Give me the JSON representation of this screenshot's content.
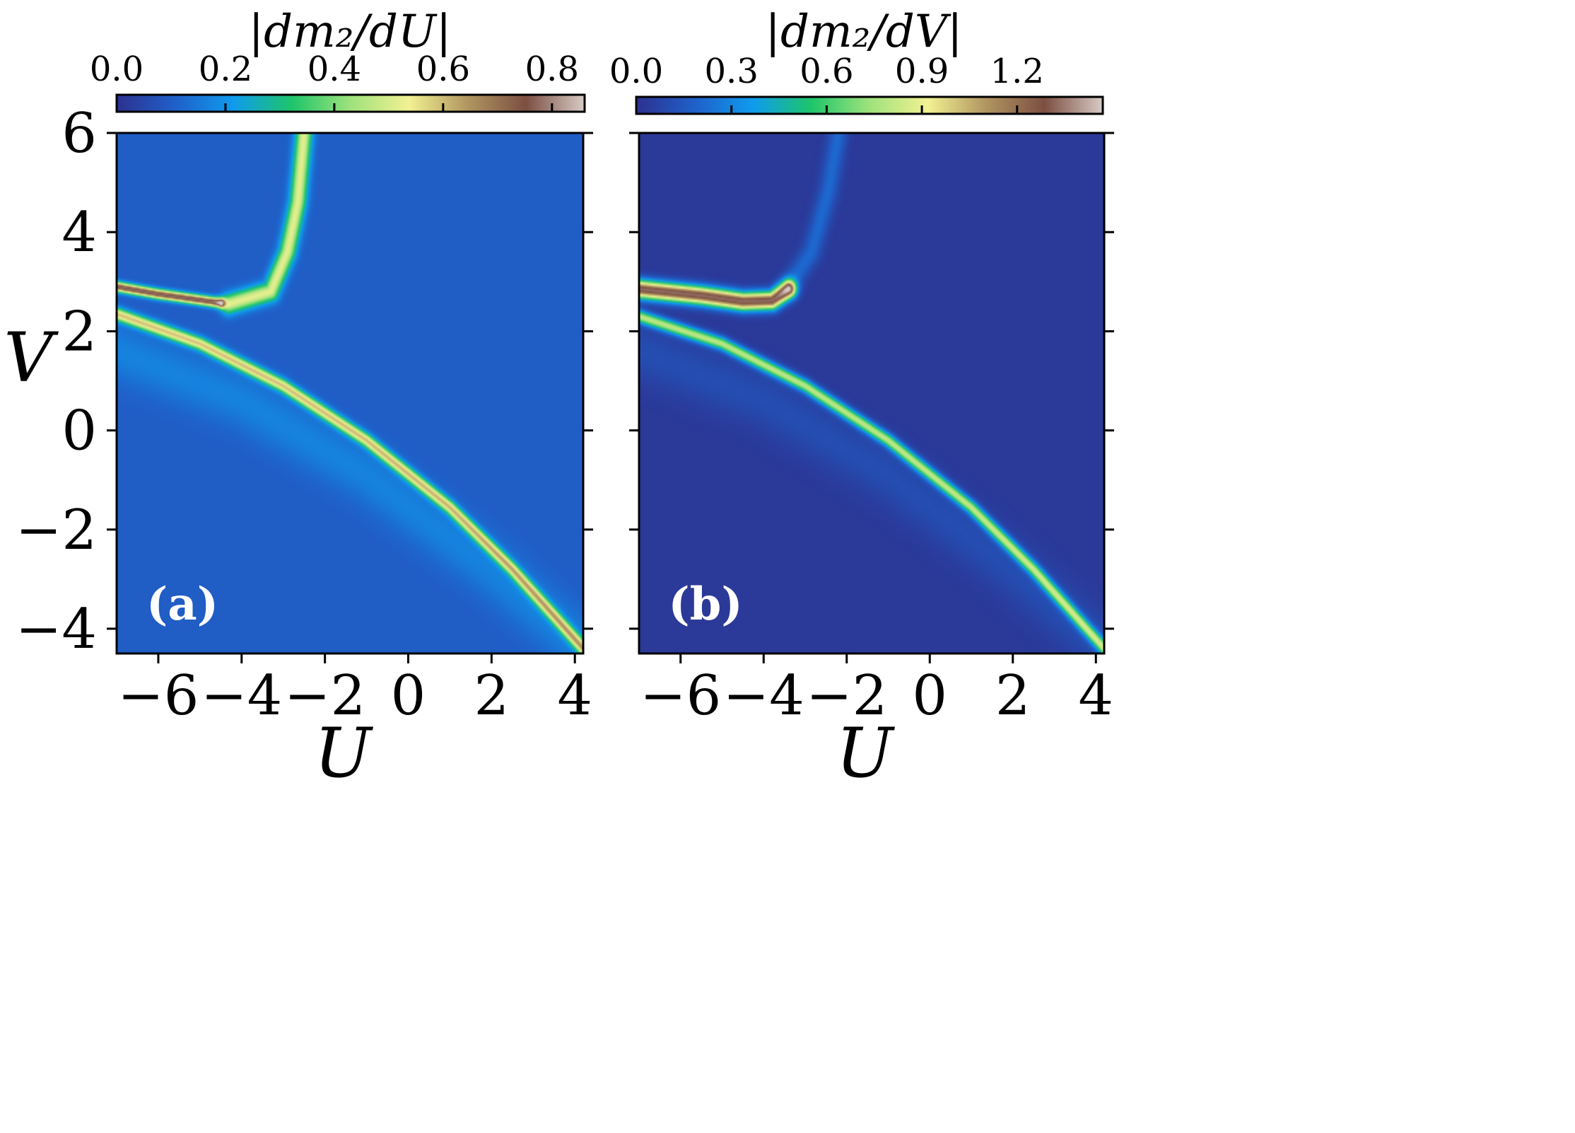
{
  "chart_data": [
    {
      "type": "heatmap",
      "panel_label": "(a)",
      "colorbar": {
        "title": "|dm₂/dU|",
        "ticks": [
          0.0,
          0.2,
          0.4,
          0.6,
          0.8
        ],
        "tick_labels": [
          "0.0",
          "0.2",
          "0.4",
          "0.6",
          "0.8"
        ],
        "range": [
          0.0,
          0.86
        ],
        "colormap": [
          "#2d318f",
          "#1f60c9",
          "#0f9bee",
          "#1ec56a",
          "#9fe27c",
          "#f2f192",
          "#b09560",
          "#7c4f42",
          "#d8cbc6"
        ]
      },
      "xlabel": "U",
      "ylabel": "V",
      "xlim": [
        -7.0,
        4.2
      ],
      "ylim": [
        -4.5,
        6.0
      ],
      "xticks": [
        -6,
        -4,
        -2,
        0,
        2,
        4
      ],
      "xtick_labels": [
        "−6",
        "−4",
        "−2",
        "0",
        "2",
        "4"
      ],
      "yticks": [
        -4,
        -2,
        0,
        2,
        4,
        6
      ],
      "ytick_labels": [
        "−4",
        "−2",
        "0",
        "2",
        "4",
        "6"
      ],
      "background_value": 0.1,
      "features": [
        {
          "name": "lower-transition-line",
          "peak": 0.48,
          "width": 0.09,
          "points": [
            [
              -7.0,
              2.35
            ],
            [
              -5.0,
              1.75
            ],
            [
              -3.0,
              0.9
            ],
            [
              -1.0,
              -0.2
            ],
            [
              1.0,
              -1.55
            ],
            [
              2.5,
              -2.8
            ],
            [
              4.2,
              -4.4
            ]
          ]
        },
        {
          "name": "upper-left-line",
          "peak": 0.68,
          "width": 0.07,
          "points": [
            [
              -7.0,
              2.9
            ],
            [
              -6.0,
              2.75
            ],
            [
              -5.0,
              2.63
            ],
            [
              -4.5,
              2.57
            ]
          ]
        },
        {
          "name": "vertical-arc",
          "peak": 0.42,
          "width": 0.14,
          "points": [
            [
              -4.3,
              2.55
            ],
            [
              -3.3,
              2.8
            ],
            [
              -2.9,
              3.6
            ],
            [
              -2.65,
              4.6
            ],
            [
              -2.5,
              6.0
            ]
          ]
        },
        {
          "name": "diffuse-lower-parabola",
          "peak": 0.07,
          "width": 0.4,
          "points": [
            [
              -7.0,
              1.6
            ],
            [
              -4.0,
              0.6
            ],
            [
              -1.0,
              -0.9
            ],
            [
              2.0,
              -2.8
            ],
            [
              4.2,
              -4.4
            ]
          ]
        }
      ]
    },
    {
      "type": "heatmap",
      "panel_label": "(b)",
      "colorbar": {
        "title": "|dm₂/dV|",
        "ticks": [
          0.0,
          0.3,
          0.6,
          0.9,
          1.2
        ],
        "tick_labels": [
          "0.0",
          "0.3",
          "0.6",
          "0.9",
          "1.2"
        ],
        "range": [
          0.0,
          1.47
        ],
        "colormap": [
          "#2d318f",
          "#1f60c9",
          "#0f9bee",
          "#1ec56a",
          "#9fe27c",
          "#f2f192",
          "#b09560",
          "#7c4f42",
          "#d8cbc6"
        ]
      },
      "xlabel": "U",
      "ylabel": "",
      "xlim": [
        -7.0,
        4.2
      ],
      "ylim": [
        -4.5,
        6.0
      ],
      "xticks": [
        -6,
        -4,
        -2,
        0,
        2,
        4
      ],
      "xtick_labels": [
        "−6",
        "−4",
        "−2",
        "0",
        "2",
        "4"
      ],
      "yticks": [
        -4,
        -2,
        0,
        2,
        4,
        6
      ],
      "ytick_labels": [],
      "background_value": 0.03,
      "features": [
        {
          "name": "lower-transition-line",
          "peak": 0.75,
          "width": 0.09,
          "points": [
            [
              -7.0,
              2.3
            ],
            [
              -5.0,
              1.75
            ],
            [
              -3.0,
              0.9
            ],
            [
              -1.0,
              -0.2
            ],
            [
              1.0,
              -1.55
            ],
            [
              2.5,
              -2.8
            ],
            [
              4.2,
              -4.4
            ]
          ]
        },
        {
          "name": "upper-left-line",
          "peak": 1.3,
          "width": 0.13,
          "points": [
            [
              -7.0,
              2.85
            ],
            [
              -5.5,
              2.72
            ],
            [
              -4.5,
              2.6
            ],
            [
              -3.8,
              2.62
            ],
            [
              -3.4,
              2.85
            ]
          ]
        },
        {
          "name": "vertical-arc",
          "peak": 0.18,
          "width": 0.16,
          "points": [
            [
              -3.4,
              2.9
            ],
            [
              -2.85,
              3.6
            ],
            [
              -2.45,
              4.8
            ],
            [
              -2.2,
              6.0
            ]
          ]
        },
        {
          "name": "diffuse-lower-parabola",
          "peak": 0.08,
          "width": 0.4,
          "points": [
            [
              -7.0,
              1.6
            ],
            [
              -4.0,
              0.6
            ],
            [
              -1.0,
              -0.9
            ],
            [
              2.0,
              -2.8
            ],
            [
              4.2,
              -4.4
            ]
          ]
        }
      ]
    }
  ]
}
